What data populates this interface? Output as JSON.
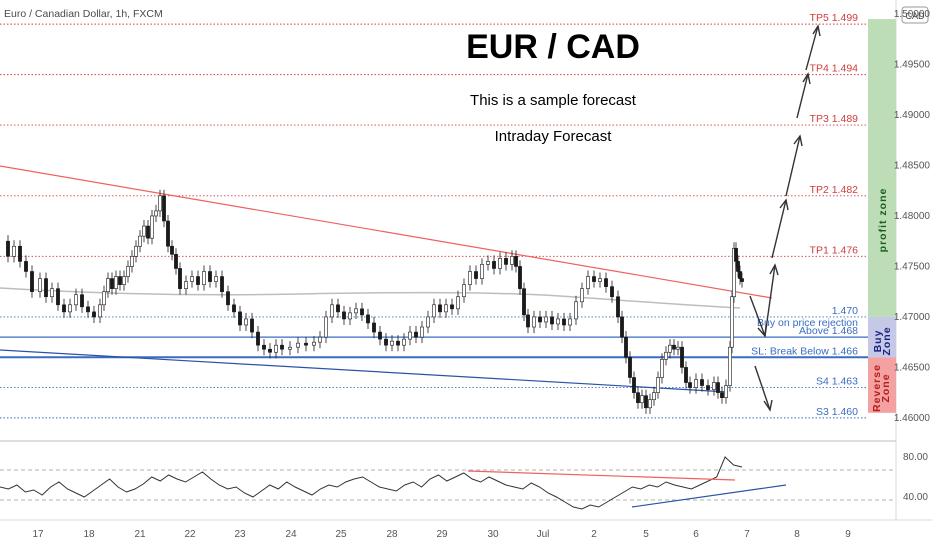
{
  "header": {
    "pair_label": "Euro / Canadian Dollar, 1h, FXCM",
    "currency_badge": "CAD"
  },
  "chart_data": [
    {
      "type": "candlestick",
      "title": "EUR / CAD",
      "subtitle": "This is a sample forecast",
      "subtitle2": "Intraday Forecast",
      "ylim": [
        1.4588,
        1.5004
      ],
      "y_ticks": [
        "1.46000",
        "1.46500",
        "1.47000",
        "1.47500",
        "1.48000",
        "1.48500",
        "1.49000",
        "1.49500",
        "1.50000"
      ],
      "x_ticks": [
        "17",
        "18",
        "21",
        "22",
        "23",
        "24",
        "25",
        "28",
        "29",
        "30",
        "Jul",
        "2",
        "5",
        "6",
        "7",
        "8",
        "9"
      ],
      "price_path": [
        [
          0,
          1.4775
        ],
        [
          8,
          1.476
        ],
        [
          14,
          1.477
        ],
        [
          20,
          1.4755
        ],
        [
          26,
          1.4745
        ],
        [
          32,
          1.4725
        ],
        [
          40,
          1.4738
        ],
        [
          46,
          1.472
        ],
        [
          52,
          1.4728
        ],
        [
          58,
          1.4712
        ],
        [
          64,
          1.4705
        ],
        [
          70,
          1.4712
        ],
        [
          76,
          1.4722
        ],
        [
          82,
          1.471
        ],
        [
          88,
          1.4705
        ],
        [
          94,
          1.47
        ],
        [
          100,
          1.4712
        ],
        [
          104,
          1.4725
        ],
        [
          108,
          1.4738
        ],
        [
          112,
          1.4728
        ],
        [
          116,
          1.474
        ],
        [
          120,
          1.4732
        ],
        [
          124,
          1.474
        ],
        [
          128,
          1.475
        ],
        [
          132,
          1.476
        ],
        [
          136,
          1.477
        ],
        [
          140,
          1.478
        ],
        [
          144,
          1.479
        ],
        [
          148,
          1.4778
        ],
        [
          152,
          1.48
        ],
        [
          156,
          1.4805
        ],
        [
          160,
          1.482
        ],
        [
          164,
          1.4795
        ],
        [
          168,
          1.477
        ],
        [
          172,
          1.4762
        ],
        [
          176,
          1.4748
        ],
        [
          180,
          1.4728
        ],
        [
          186,
          1.4735
        ],
        [
          192,
          1.474
        ],
        [
          198,
          1.4732
        ],
        [
          204,
          1.4745
        ],
        [
          210,
          1.4735
        ],
        [
          216,
          1.474
        ],
        [
          222,
          1.4725
        ],
        [
          228,
          1.4712
        ],
        [
          234,
          1.4705
        ],
        [
          240,
          1.4692
        ],
        [
          246,
          1.4698
        ],
        [
          252,
          1.4685
        ],
        [
          258,
          1.4672
        ],
        [
          264,
          1.4668
        ],
        [
          270,
          1.4665
        ],
        [
          276,
          1.4672
        ],
        [
          282,
          1.4668
        ],
        [
          290,
          1.467
        ],
        [
          298,
          1.4674
        ],
        [
          306,
          1.4672
        ],
        [
          314,
          1.4675
        ],
        [
          320,
          1.468
        ],
        [
          326,
          1.47
        ],
        [
          332,
          1.4712
        ],
        [
          338,
          1.4705
        ],
        [
          344,
          1.4698
        ],
        [
          350,
          1.4704
        ],
        [
          356,
          1.4708
        ],
        [
          362,
          1.4702
        ],
        [
          368,
          1.4694
        ],
        [
          374,
          1.4685
        ],
        [
          380,
          1.4678
        ],
        [
          386,
          1.4672
        ],
        [
          392,
          1.4676
        ],
        [
          398,
          1.4672
        ],
        [
          404,
          1.4678
        ],
        [
          410,
          1.4685
        ],
        [
          416,
          1.468
        ],
        [
          422,
          1.469
        ],
        [
          428,
          1.47
        ],
        [
          434,
          1.4712
        ],
        [
          440,
          1.4705
        ],
        [
          446,
          1.4712
        ],
        [
          452,
          1.4708
        ],
        [
          458,
          1.472
        ],
        [
          464,
          1.4732
        ],
        [
          470,
          1.4745
        ],
        [
          476,
          1.4738
        ],
        [
          482,
          1.4752
        ],
        [
          488,
          1.4755
        ],
        [
          494,
          1.4748
        ],
        [
          500,
          1.4758
        ],
        [
          506,
          1.4752
        ],
        [
          512,
          1.476
        ],
        [
          516,
          1.475
        ],
        [
          520,
          1.4728
        ],
        [
          524,
          1.4702
        ],
        [
          528,
          1.469
        ],
        [
          534,
          1.47
        ],
        [
          540,
          1.4695
        ],
        [
          546,
          1.47
        ],
        [
          552,
          1.4693
        ],
        [
          558,
          1.4698
        ],
        [
          564,
          1.4692
        ],
        [
          570,
          1.4698
        ],
        [
          576,
          1.4715
        ],
        [
          582,
          1.4728
        ],
        [
          588,
          1.474
        ],
        [
          594,
          1.4735
        ],
        [
          600,
          1.4738
        ],
        [
          606,
          1.473
        ],
        [
          612,
          1.472
        ],
        [
          618,
          1.47
        ],
        [
          622,
          1.468
        ],
        [
          626,
          1.466
        ],
        [
          630,
          1.464
        ],
        [
          634,
          1.4625
        ],
        [
          638,
          1.4615
        ],
        [
          642,
          1.4622
        ],
        [
          646,
          1.461
        ],
        [
          650,
          1.4618
        ],
        [
          654,
          1.4625
        ],
        [
          658,
          1.464
        ],
        [
          662,
          1.4658
        ],
        [
          666,
          1.4665
        ],
        [
          670,
          1.4672
        ],
        [
          674,
          1.4668
        ],
        [
          678,
          1.467
        ],
        [
          682,
          1.465
        ],
        [
          686,
          1.4635
        ],
        [
          690,
          1.463
        ],
        [
          696,
          1.4638
        ],
        [
          702,
          1.4632
        ],
        [
          708,
          1.4628
        ],
        [
          714,
          1.4635
        ],
        [
          718,
          1.4625
        ],
        [
          722,
          1.462
        ],
        [
          726,
          1.4632
        ],
        [
          730,
          1.467
        ],
        [
          732,
          1.472
        ],
        [
          734,
          1.4768
        ],
        [
          736,
          1.4755
        ],
        [
          738,
          1.4745
        ],
        [
          740,
          1.4738
        ],
        [
          742,
          1.4735
        ]
      ],
      "levels": [
        {
          "label": "TP5 1.499",
          "value": 1.499,
          "color": "#d33b3b"
        },
        {
          "label": "TP4 1.494",
          "value": 1.494,
          "color": "#d33b3b"
        },
        {
          "label": "TP3 1.489",
          "value": 1.489,
          "color": "#d33b3b"
        },
        {
          "label": "TP2 1.482",
          "value": 1.482,
          "color": "#d33b3b"
        },
        {
          "label": "TP1 1.476",
          "value": 1.476,
          "color": "#d33b3b"
        },
        {
          "label": "1.470",
          "value": 1.47,
          "color": "#3a6cc4"
        },
        {
          "label": "Buy on price rejection",
          "value": 1.4688,
          "color": "#3a6cc4"
        },
        {
          "label": "Above  1.468",
          "value": 1.468,
          "color": "#3a6cc4"
        },
        {
          "label": "SL: Break Below 1.466",
          "value": 1.466,
          "color": "#3a6cc4"
        },
        {
          "label": "S4 1.463",
          "value": 1.463,
          "color": "#3a6cc4"
        },
        {
          "label": "S3 1.460",
          "value": 1.46,
          "color": "#3a6cc4"
        }
      ],
      "zones": {
        "profit": {
          "label": "profit zone",
          "from": 1.47,
          "to": 1.4995,
          "color": "#b9dbb3"
        },
        "buy": {
          "label": "Buy Zone",
          "from": 1.466,
          "to": 1.47,
          "color": "#c3c5e6"
        },
        "reverse": {
          "label": "Reverse Zone",
          "from": 1.4605,
          "to": 1.466,
          "color": "#f29c9c"
        }
      }
    },
    {
      "type": "line",
      "indicator": "oscillator",
      "ylim": [
        20,
        90
      ],
      "y_ticks": [
        "80.00",
        "40.00"
      ],
      "values": [
        50,
        48,
        52,
        45,
        47,
        42,
        50,
        55,
        48,
        44,
        40,
        46,
        52,
        58,
        50,
        45,
        48,
        53,
        60,
        56,
        62,
        58,
        55,
        60,
        65,
        58,
        52,
        48,
        50,
        44,
        40,
        46,
        52,
        48,
        55,
        50,
        46,
        42,
        48,
        52,
        50,
        55,
        58,
        60,
        55,
        50,
        48,
        46,
        52,
        55,
        50,
        58,
        62,
        56,
        60,
        64,
        58,
        55,
        60,
        56,
        52,
        50,
        48,
        54,
        50,
        44,
        40,
        35,
        30,
        28,
        32,
        30,
        35,
        40,
        45,
        50,
        48,
        52,
        50,
        55,
        52,
        50,
        48,
        52,
        56,
        60,
        80,
        72,
        70
      ]
    }
  ]
}
